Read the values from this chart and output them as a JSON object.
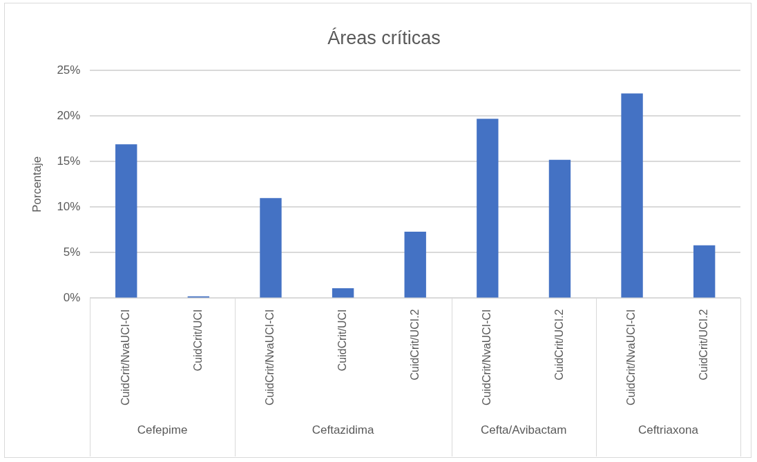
{
  "chart_data": {
    "type": "bar",
    "title": "Áreas críticas",
    "ylabel": "Porcentaje",
    "categories": [
      "CuidCrit/NvaUCI-CI",
      "CuidCrit/UCI",
      "CuidCrit/NvaUCI-CI",
      "CuidCrit/UCI",
      "CuidCrit/UCI.2",
      "CuidCrit/NvaUCI-CI",
      "CuidCrit/UCI.2",
      "CuidCrit/NvaUCI-CI",
      "CuidCrit/UCI.2"
    ],
    "series": [
      {
        "color": "#4472c4",
        "values": [
          16.9,
          0.2,
          null,
          null,
          null,
          null,
          null,
          null,
          null
        ]
      },
      {
        "color": "#4472c4",
        "values": [
          null,
          null,
          11.0,
          1.1,
          7.3,
          null,
          null,
          null,
          null
        ]
      },
      {
        "color": "#4472c4",
        "values": [
          null,
          null,
          null,
          null,
          null,
          19.7,
          15.2,
          null,
          null
        ]
      },
      {
        "color": "#4472c4",
        "values": [
          null,
          null,
          null,
          null,
          null,
          null,
          null,
          22.5,
          5.8
        ]
      }
    ],
    "annotations": [
      "Cefepime",
      "Ceftazidima",
      "Cefta/Avibactam",
      "Ceftriaxona"
    ],
    "ylim": [
      0,
      25
    ],
    "yticks": [
      {
        "value": 0,
        "label": "0%"
      },
      {
        "value": 5,
        "label": "5%"
      },
      {
        "value": 10,
        "label": "10%"
      },
      {
        "value": 15,
        "label": "15%"
      },
      {
        "value": 20,
        "label": "20%"
      },
      {
        "value": 25,
        "label": "25%"
      }
    ],
    "grid": "y",
    "legend": false
  }
}
